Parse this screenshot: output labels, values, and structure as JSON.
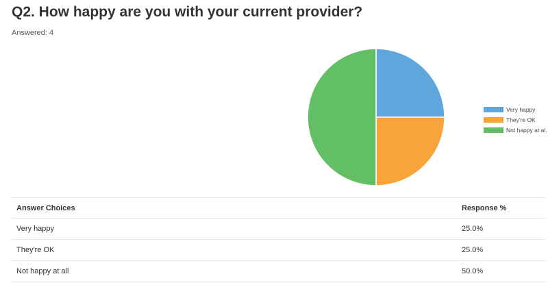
{
  "question": {
    "title": "Q2. How happy are you with your current provider?",
    "answered": "Answered: 4"
  },
  "chart_data": {
    "type": "pie",
    "categories": [
      "Very happy",
      "They're OK",
      "Not happy at all"
    ],
    "values": [
      25.0,
      25.0,
      50.0
    ],
    "colors": [
      "#5fa6dc",
      "#f9a43a",
      "#63bf66"
    ],
    "legend_labels": [
      "Very happy",
      "They're OK",
      "Not happy at al..."
    ],
    "legend_position": "right"
  },
  "table": {
    "headers": [
      "Answer Choices",
      "Response %"
    ],
    "rows": [
      {
        "choice": "Very happy",
        "percent": "25.0%"
      },
      {
        "choice": "They're OK",
        "percent": "25.0%"
      },
      {
        "choice": "Not happy at all",
        "percent": "50.0%"
      }
    ]
  }
}
